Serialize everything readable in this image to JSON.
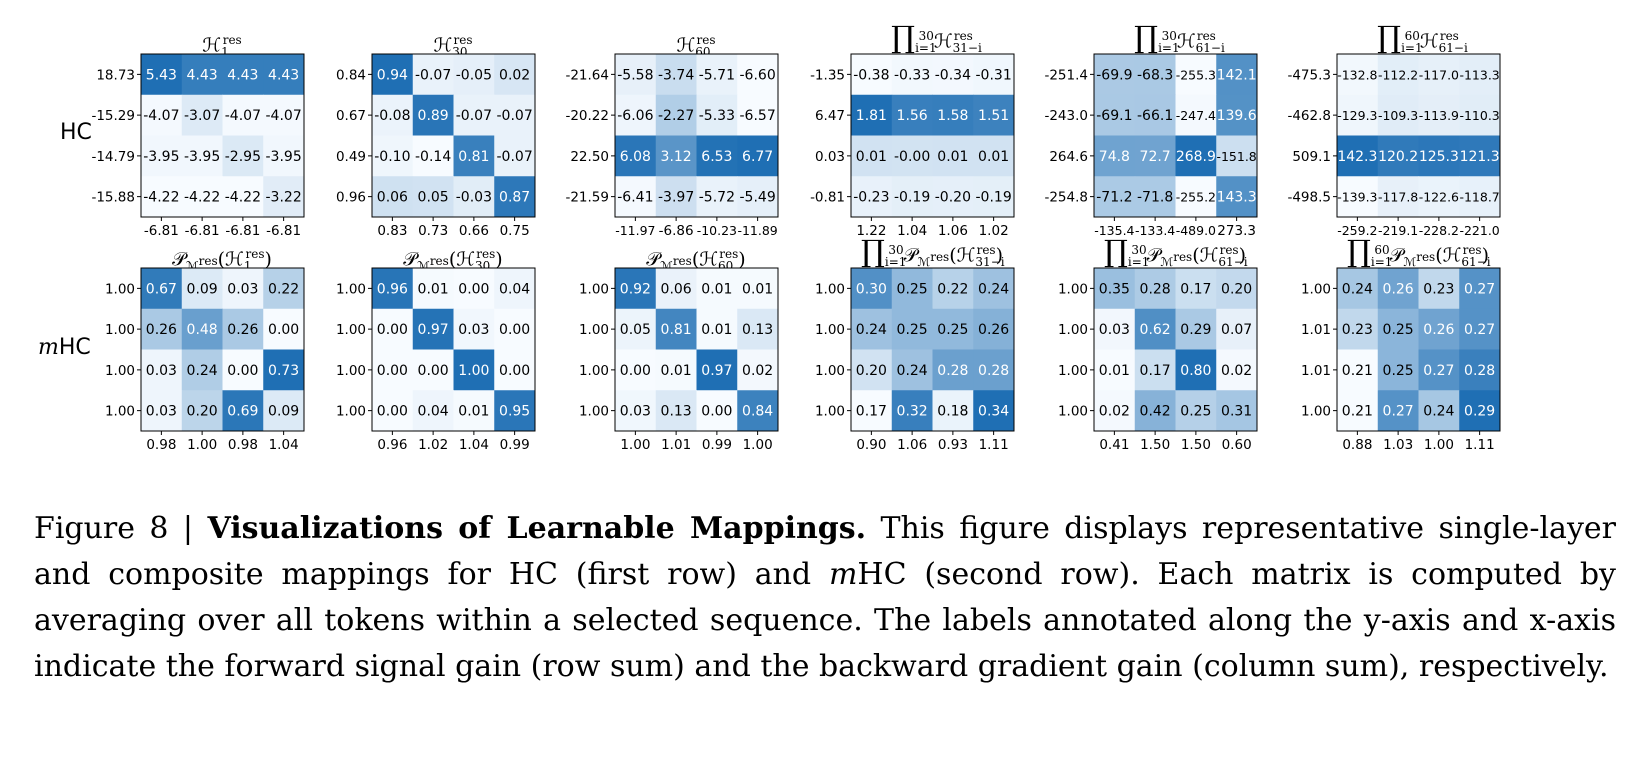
{
  "row_labels": [
    "HC",
    "mHC"
  ],
  "chart_data": [
    {
      "type": "heatmap",
      "title": "H_1^res",
      "matrix": [
        [
          5.43,
          4.43,
          4.43,
          4.43
        ],
        [
          -4.07,
          -3.07,
          -4.07,
          -4.07
        ],
        [
          -3.95,
          -3.95,
          -2.95,
          -3.95
        ],
        [
          -4.22,
          -4.22,
          -4.22,
          -3.22
        ]
      ],
      "row_sums": [
        "18.73",
        "-15.29",
        "-14.79",
        "-15.88"
      ],
      "col_sums": [
        "-6.81",
        "-6.81",
        "-6.81",
        "-6.81"
      ]
    },
    {
      "type": "heatmap",
      "title": "H_30^res",
      "matrix": [
        [
          0.94,
          -0.07,
          -0.05,
          0.02
        ],
        [
          -0.08,
          0.89,
          -0.07,
          -0.07
        ],
        [
          -0.1,
          -0.14,
          0.81,
          -0.07
        ],
        [
          0.06,
          0.05,
          -0.03,
          0.87
        ]
      ],
      "row_sums": [
        "0.84",
        "0.67",
        "0.49",
        "0.96"
      ],
      "col_sums": [
        "0.83",
        "0.73",
        "0.66",
        "0.75"
      ]
    },
    {
      "type": "heatmap",
      "title": "H_60^res",
      "matrix": [
        [
          -5.58,
          -3.74,
          -5.71,
          -6.6
        ],
        [
          -6.06,
          -2.27,
          -5.33,
          -6.57
        ],
        [
          6.08,
          3.12,
          6.53,
          6.77
        ],
        [
          -6.41,
          -3.97,
          -5.72,
          -5.49
        ]
      ],
      "row_sums": [
        "-21.64",
        "-20.22",
        "22.50",
        "-21.59"
      ],
      "col_sums": [
        "-11.97",
        "-6.86",
        "-10.23",
        "-11.89"
      ]
    },
    {
      "type": "heatmap",
      "title": "prod_{i=1}^{30} H_{31-i}^res",
      "matrix": [
        [
          -0.38,
          -0.33,
          -0.34,
          -0.31
        ],
        [
          1.81,
          1.56,
          1.58,
          1.51
        ],
        [
          0.01,
          -0.0,
          0.01,
          0.01
        ],
        [
          -0.23,
          -0.19,
          -0.2,
          -0.19
        ]
      ],
      "row_sums": [
        "-1.35",
        "6.47",
        "0.03",
        "-0.81"
      ],
      "col_sums": [
        "1.22",
        "1.04",
        "1.06",
        "1.02"
      ]
    },
    {
      "type": "heatmap",
      "title": "prod_{i=1}^{30} H_{61-i}^res",
      "matrix": [
        [
          -69.9,
          -68.3,
          -255.3,
          142.1
        ],
        [
          -69.1,
          -66.1,
          -247.4,
          139.6
        ],
        [
          74.8,
          72.7,
          268.9,
          -151.8
        ],
        [
          -71.2,
          -71.8,
          -255.2,
          143.3
        ]
      ],
      "row_sums": [
        "-251.4",
        "-243.0",
        "264.6",
        "-254.8"
      ],
      "col_sums": [
        "-135.4",
        "-133.4",
        "-489.0",
        "273.3"
      ]
    },
    {
      "type": "heatmap",
      "title": "prod_{i=1}^{60} H_{61-i}^res",
      "matrix": [
        [
          -132.8,
          -112.2,
          -117.0,
          -113.3
        ],
        [
          -129.3,
          -109.3,
          -113.9,
          -110.3
        ],
        [
          142.3,
          120.2,
          125.3,
          121.3
        ],
        [
          -139.3,
          -117.8,
          -122.6,
          -118.7
        ]
      ],
      "row_sums": [
        "-475.3",
        "-462.8",
        "509.1",
        "-498.5"
      ],
      "col_sums": [
        "-259.2",
        "-219.1",
        "-228.2",
        "-221.0"
      ]
    },
    {
      "type": "heatmap",
      "title": "P_Mres(H_1^res)",
      "matrix": [
        [
          0.67,
          0.09,
          0.03,
          0.22
        ],
        [
          0.26,
          0.48,
          0.26,
          0.0
        ],
        [
          0.03,
          0.24,
          0.0,
          0.73
        ],
        [
          0.03,
          0.2,
          0.69,
          0.09
        ]
      ],
      "row_sums": [
        "1.00",
        "1.00",
        "1.00",
        "1.00"
      ],
      "col_sums": [
        "0.98",
        "1.00",
        "0.98",
        "1.04"
      ]
    },
    {
      "type": "heatmap",
      "title": "P_Mres(H_30^res)",
      "matrix": [
        [
          0.96,
          0.01,
          0.0,
          0.04
        ],
        [
          0.0,
          0.97,
          0.03,
          0.0
        ],
        [
          0.0,
          0.0,
          1.0,
          0.0
        ],
        [
          0.0,
          0.04,
          0.01,
          0.95
        ]
      ],
      "row_sums": [
        "1.00",
        "1.00",
        "1.00",
        "1.00"
      ],
      "col_sums": [
        "0.96",
        "1.02",
        "1.04",
        "0.99"
      ]
    },
    {
      "type": "heatmap",
      "title": "P_Mres(H_60^res)",
      "matrix": [
        [
          0.92,
          0.06,
          0.01,
          0.01
        ],
        [
          0.05,
          0.81,
          0.01,
          0.13
        ],
        [
          0.0,
          0.01,
          0.97,
          0.02
        ],
        [
          0.03,
          0.13,
          0.0,
          0.84
        ]
      ],
      "row_sums": [
        "1.00",
        "1.00",
        "1.00",
        "1.00"
      ],
      "col_sums": [
        "1.00",
        "1.01",
        "0.99",
        "1.00"
      ]
    },
    {
      "type": "heatmap",
      "title": "prod_{i=1}^{30} P_Mres(H_{31-i}^res)",
      "matrix": [
        [
          0.3,
          0.25,
          0.22,
          0.24
        ],
        [
          0.24,
          0.25,
          0.25,
          0.26
        ],
        [
          0.2,
          0.24,
          0.28,
          0.28
        ],
        [
          0.17,
          0.32,
          0.18,
          0.34
        ]
      ],
      "row_sums": [
        "1.00",
        "1.00",
        "1.00",
        "1.00"
      ],
      "col_sums": [
        "0.90",
        "1.06",
        "0.93",
        "1.11"
      ]
    },
    {
      "type": "heatmap",
      "title": "prod_{i=1}^{30} P_Mres(H_{61-i}^res)",
      "matrix": [
        [
          0.35,
          0.28,
          0.17,
          0.2
        ],
        [
          0.03,
          0.62,
          0.29,
          0.07
        ],
        [
          0.01,
          0.17,
          0.8,
          0.02
        ],
        [
          0.02,
          0.42,
          0.25,
          0.31
        ]
      ],
      "row_sums": [
        "1.00",
        "1.00",
        "1.00",
        "1.00"
      ],
      "col_sums": [
        "0.41",
        "1.50",
        "1.50",
        "0.60"
      ]
    },
    {
      "type": "heatmap",
      "title": "prod_{i=1}^{60} P_Mres(H_{61-i}^res)",
      "matrix": [
        [
          0.24,
          0.26,
          0.23,
          0.27
        ],
        [
          0.23,
          0.25,
          0.26,
          0.27
        ],
        [
          0.21,
          0.25,
          0.27,
          0.28
        ],
        [
          0.21,
          0.27,
          0.24,
          0.29
        ]
      ],
      "row_sums": [
        "1.00",
        "1.01",
        "1.01",
        "1.00"
      ],
      "col_sums": [
        "0.88",
        "1.03",
        "1.00",
        "1.11"
      ]
    }
  ],
  "caption": {
    "prefix": "Figure 8 | ",
    "bold": "Visualizations of Learnable Mappings.",
    "text_1": " This figure displays representative single-layer and composite mappings for HC (first row) and ",
    "mhc_m": "m",
    "text_2": "HC (second row).  Each matrix is computed by averaging over all tokens within a selected sequence. The labels annotated along the y-axis and x-axis indicate the forward signal gain (row sum) and the backward gradient gain (column sum), respectively."
  },
  "colors": {
    "cmap_low": "#f7fbff",
    "cmap_high": "#1f6fb4",
    "text_dark": "#000000",
    "text_light": "#ffffff"
  }
}
